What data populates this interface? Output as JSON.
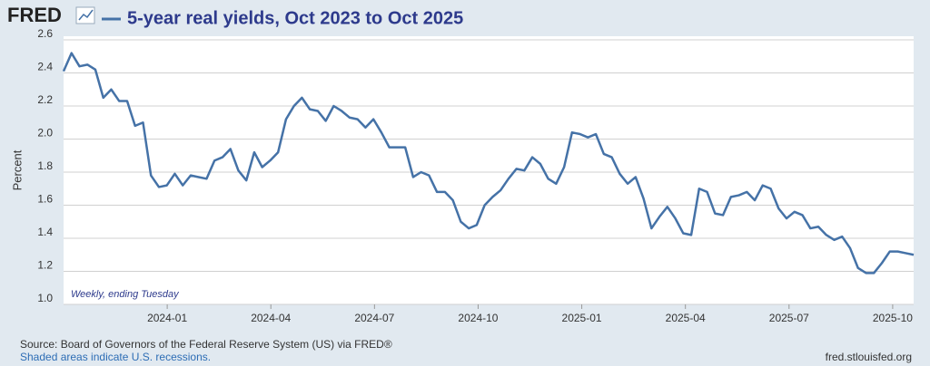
{
  "logo": "FRED",
  "chart_data": {
    "type": "line",
    "title": "5-year real yields, Oct 2023 to Oct 2025",
    "y_label": "Percent",
    "annotation": "Weekly, ending Tuesday",
    "color": "#4572a7",
    "values": [
      2.41,
      2.52,
      2.44,
      2.45,
      2.42,
      2.25,
      2.3,
      2.23,
      2.23,
      2.08,
      2.1,
      1.78,
      1.71,
      1.72,
      1.79,
      1.72,
      1.78,
      1.77,
      1.76,
      1.87,
      1.89,
      1.94,
      1.81,
      1.75,
      1.92,
      1.83,
      1.87,
      1.92,
      2.12,
      2.2,
      2.25,
      2.18,
      2.17,
      2.11,
      2.2,
      2.17,
      2.13,
      2.12,
      2.07,
      2.12,
      2.04,
      1.95,
      1.95,
      1.95,
      1.77,
      1.8,
      1.78,
      1.68,
      1.68,
      1.63,
      1.5,
      1.46,
      1.48,
      1.6,
      1.65,
      1.69,
      1.76,
      1.82,
      1.81,
      1.89,
      1.85,
      1.76,
      1.73,
      1.83,
      2.04,
      2.03,
      2.01,
      2.03,
      1.91,
      1.89,
      1.79,
      1.73,
      1.77,
      1.64,
      1.46,
      1.53,
      1.59,
      1.52,
      1.43,
      1.42,
      1.7,
      1.68,
      1.55,
      1.54,
      1.65,
      1.66,
      1.68,
      1.63,
      1.72,
      1.7,
      1.58,
      1.52,
      1.56,
      1.54,
      1.46,
      1.47,
      1.42,
      1.39,
      1.41,
      1.34,
      1.22,
      1.19,
      1.19,
      1.25,
      1.32,
      1.32,
      1.31,
      1.3
    ],
    "xticks": [
      "2024-01",
      "2024-04",
      "2024-07",
      "2024-10",
      "2025-01",
      "2025-04",
      "2025-07",
      "2025-10"
    ],
    "ylim": [
      1.0,
      2.6
    ],
    "yticks": [
      {
        "value": 1.0,
        "label": "1.0"
      },
      1.2,
      1.4,
      1.6,
      1.8,
      {
        "value": 2.0,
        "label": "2.0"
      },
      2.2,
      2.4,
      2.6
    ],
    "grid": true,
    "source": "Source: Board of Governors of the Federal Reserve System (US) via FRED®",
    "recession_note": "Shaded areas indicate U.S. recessions.",
    "site": "fred.stlouisfed.org"
  }
}
